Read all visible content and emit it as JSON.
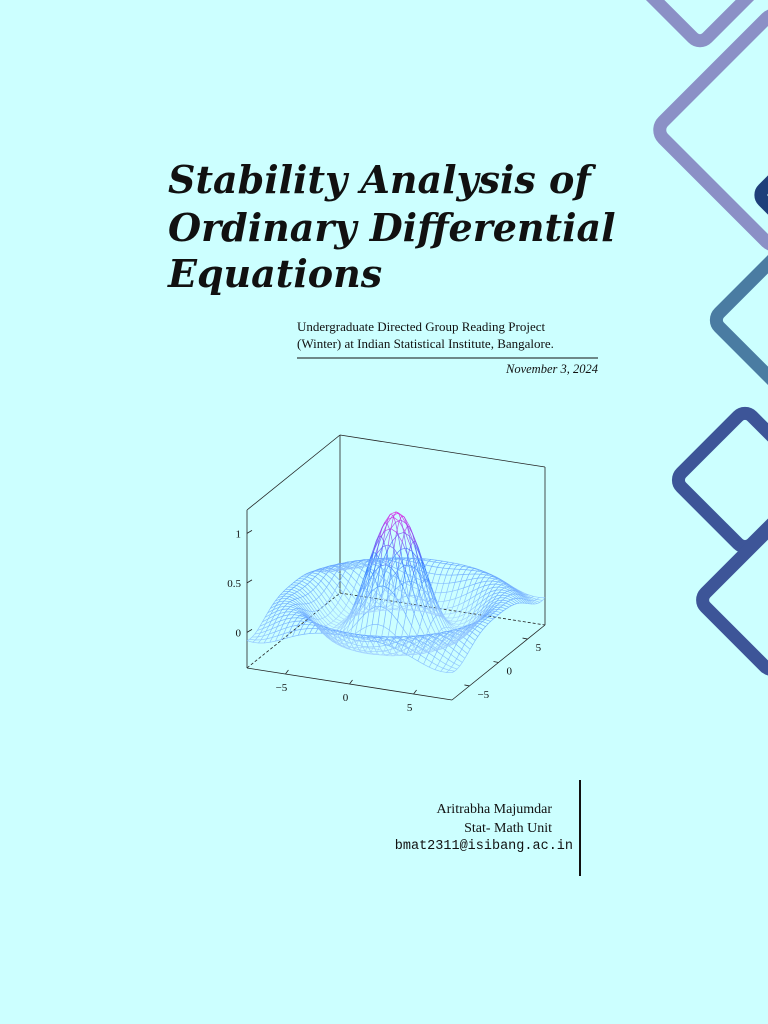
{
  "title": {
    "lines": [
      "Stability Analysis of",
      "Ordinary Differential",
      "Equations"
    ]
  },
  "subtitle": {
    "lines": [
      "Undergraduate Directed Group Reading Project",
      "(Winter) at Indian Statistical Institute, Bangalore."
    ]
  },
  "date": "November 3, 2024",
  "figure": {
    "z_ticks": [
      "1",
      "0.5",
      "0"
    ],
    "x_ticks": [
      "−5",
      "0",
      "5"
    ],
    "y_ticks": [
      "5",
      "0",
      "−5"
    ]
  },
  "author": {
    "name": "Aritrabha Majumdar",
    "unit": "Stat- Math Unit",
    "email": "bmat2311@isibang.ac.in"
  }
}
